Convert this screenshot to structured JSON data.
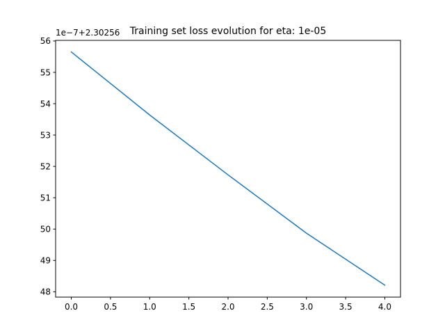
{
  "chart_data": {
    "type": "line",
    "title": "Training set loss evolution for eta: 1e-05",
    "xlabel": "",
    "ylabel": "",
    "y_offset_label": "1e−7+2.30256",
    "xlim": [
      -0.2,
      4.2
    ],
    "ylim": [
      47.83,
      56.02
    ],
    "x_ticks": [
      0.0,
      0.5,
      1.0,
      1.5,
      2.0,
      2.5,
      3.0,
      3.5,
      4.0
    ],
    "x_tick_labels": [
      "0.0",
      "0.5",
      "1.0",
      "1.5",
      "2.0",
      "2.5",
      "3.0",
      "3.5",
      "4.0"
    ],
    "y_ticks": [
      48,
      49,
      50,
      51,
      52,
      53,
      54,
      55,
      56
    ],
    "y_tick_labels": [
      "48",
      "49",
      "50",
      "51",
      "52",
      "53",
      "54",
      "55",
      "56"
    ],
    "grid": false,
    "legend": false,
    "series": [
      {
        "x": [
          0,
          1,
          2,
          3,
          4
        ],
        "y": [
          55.65,
          53.64,
          51.73,
          49.87,
          48.21
        ],
        "color": "#1f77b4"
      }
    ]
  }
}
